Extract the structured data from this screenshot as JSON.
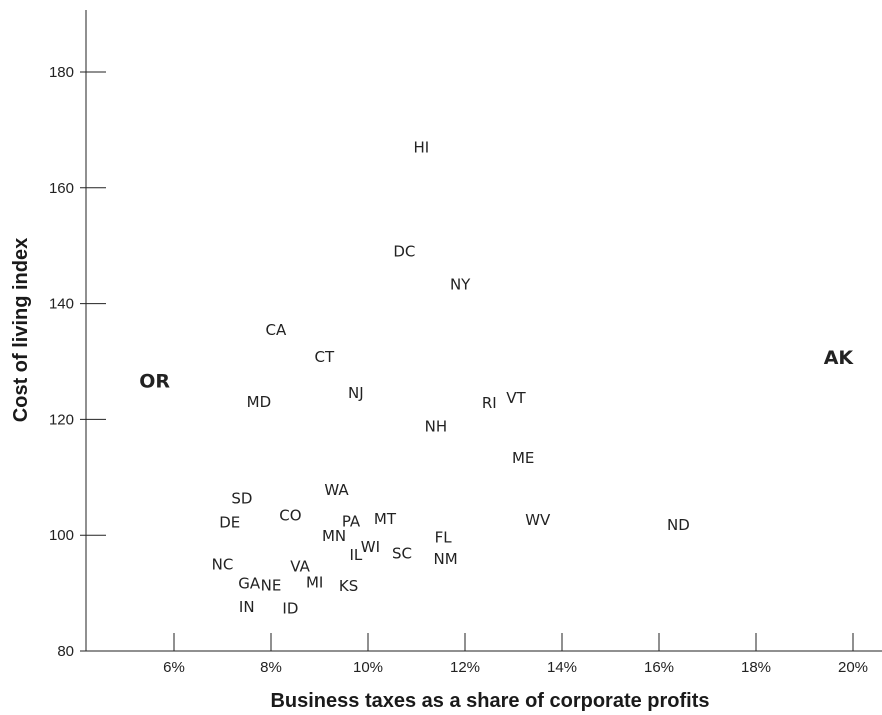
{
  "chart_data": {
    "type": "scatter",
    "title": "",
    "xlabel": "Business taxes as a share of corporate profits",
    "ylabel": "Cost of living index",
    "xlim": [
      4.4,
      20.6
    ],
    "ylim": [
      80,
      191
    ],
    "x_ticks": [
      {
        "value": 6,
        "label": "6%"
      },
      {
        "value": 8,
        "label": "8%"
      },
      {
        "value": 10,
        "label": "10%"
      },
      {
        "value": 12,
        "label": "12%"
      },
      {
        "value": 14,
        "label": "14%"
      },
      {
        "value": 16,
        "label": "16%"
      },
      {
        "value": 18,
        "label": "18%"
      },
      {
        "value": 20,
        "label": "20%"
      }
    ],
    "y_ticks": [
      {
        "value": 80,
        "label": "80"
      },
      {
        "value": 100,
        "label": "100"
      },
      {
        "value": 120,
        "label": "120"
      },
      {
        "value": 140,
        "label": "140"
      },
      {
        "value": 160,
        "label": "160"
      },
      {
        "value": 180,
        "label": "180"
      }
    ],
    "grid": false,
    "highlight_colors": {
      "OR": "#e03020",
      "AK": "#2e9bd6"
    },
    "default_color": "#222222",
    "points": [
      {
        "label": "HI",
        "x": 11.1,
        "y": 167.0
      },
      {
        "label": "DC",
        "x": 10.75,
        "y": 149.0
      },
      {
        "label": "NY",
        "x": 11.9,
        "y": 143.3
      },
      {
        "label": "CA",
        "x": 8.1,
        "y": 135.4
      },
      {
        "label": "CT",
        "x": 9.1,
        "y": 130.8
      },
      {
        "label": "OR",
        "x": 5.6,
        "y": 126.4
      },
      {
        "label": "AK",
        "x": 19.7,
        "y": 130.4
      },
      {
        "label": "NJ",
        "x": 9.75,
        "y": 124.6
      },
      {
        "label": "MD",
        "x": 7.75,
        "y": 123.0
      },
      {
        "label": "RI",
        "x": 12.5,
        "y": 122.8
      },
      {
        "label": "VT",
        "x": 13.05,
        "y": 123.7
      },
      {
        "label": "NH",
        "x": 11.4,
        "y": 118.8
      },
      {
        "label": "ME",
        "x": 13.2,
        "y": 113.3
      },
      {
        "label": "WA",
        "x": 9.35,
        "y": 107.8
      },
      {
        "label": "SD",
        "x": 7.4,
        "y": 106.3
      },
      {
        "label": "CO",
        "x": 8.4,
        "y": 103.4
      },
      {
        "label": "DE",
        "x": 7.15,
        "y": 102.2
      },
      {
        "label": "PA",
        "x": 9.65,
        "y": 102.4
      },
      {
        "label": "MT",
        "x": 10.35,
        "y": 102.8
      },
      {
        "label": "WV",
        "x": 13.5,
        "y": 102.6
      },
      {
        "label": "ND",
        "x": 16.4,
        "y": 101.8
      },
      {
        "label": "MN",
        "x": 9.3,
        "y": 99.9
      },
      {
        "label": "FL",
        "x": 11.55,
        "y": 99.6
      },
      {
        "label": "WI",
        "x": 10.05,
        "y": 98.0
      },
      {
        "label": "IL",
        "x": 9.75,
        "y": 96.6
      },
      {
        "label": "SC",
        "x": 10.7,
        "y": 96.8
      },
      {
        "label": "NM",
        "x": 11.6,
        "y": 95.9
      },
      {
        "label": "NC",
        "x": 7.0,
        "y": 94.9
      },
      {
        "label": "VA",
        "x": 8.6,
        "y": 94.6
      },
      {
        "label": "GA",
        "x": 7.55,
        "y": 91.7
      },
      {
        "label": "NE",
        "x": 8.0,
        "y": 91.3
      },
      {
        "label": "MI",
        "x": 8.9,
        "y": 91.8
      },
      {
        "label": "KS",
        "x": 9.6,
        "y": 91.2
      },
      {
        "label": "IN",
        "x": 7.5,
        "y": 87.6
      },
      {
        "label": "ID",
        "x": 8.4,
        "y": 87.3
      }
    ]
  }
}
